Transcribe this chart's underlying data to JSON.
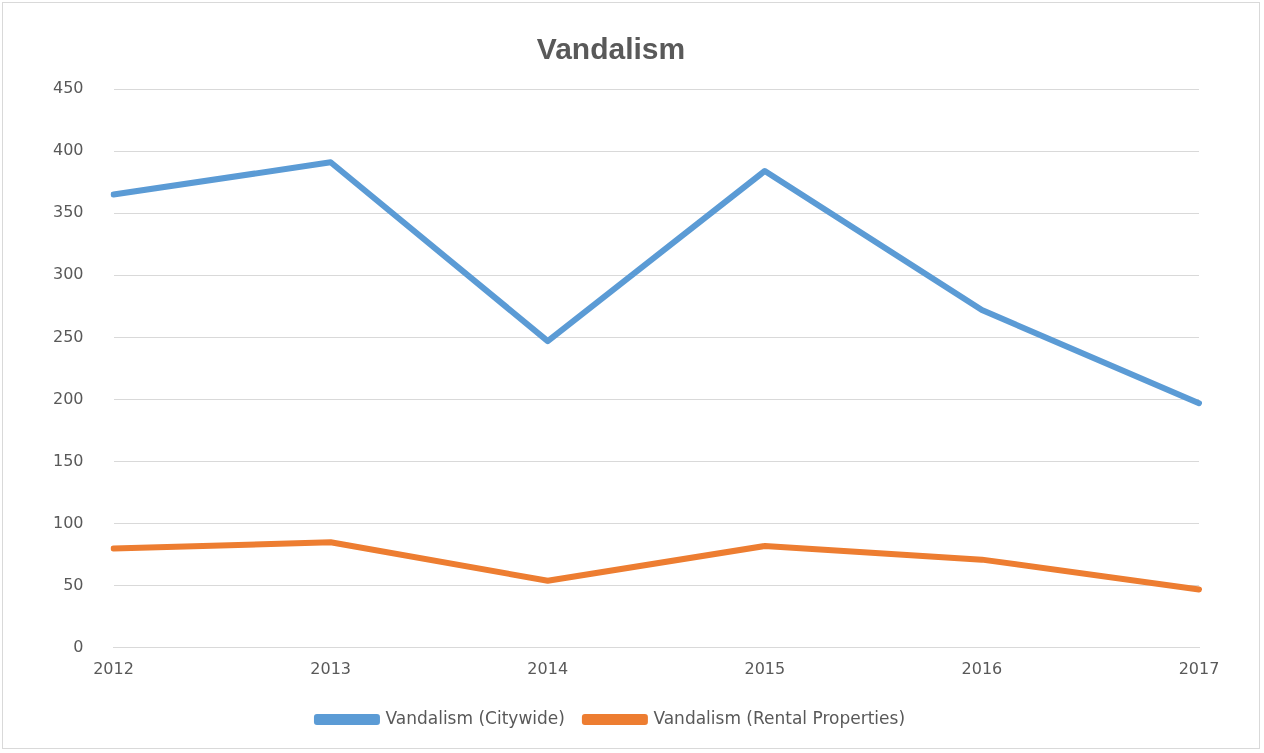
{
  "chart_data": {
    "type": "line",
    "title": "Vandalism",
    "categories": [
      "2012",
      "2013",
      "2014",
      "2015",
      "2016",
      "2017"
    ],
    "series": [
      {
        "name": "Vandalism (Citywide)",
        "color": "#5b9bd5",
        "values": [
          365,
          391,
          247,
          384,
          272,
          197
        ]
      },
      {
        "name": "Vandalism (Rental Properties)",
        "color": "#ed7d31",
        "values": [
          80,
          85,
          54,
          82,
          71,
          47
        ]
      }
    ],
    "ylim": [
      0,
      450
    ],
    "yticks": [
      0,
      50,
      100,
      150,
      200,
      250,
      300,
      350,
      400,
      450
    ],
    "grid": "y",
    "legend": "bottom",
    "marker": "none",
    "line_style": "solid"
  }
}
